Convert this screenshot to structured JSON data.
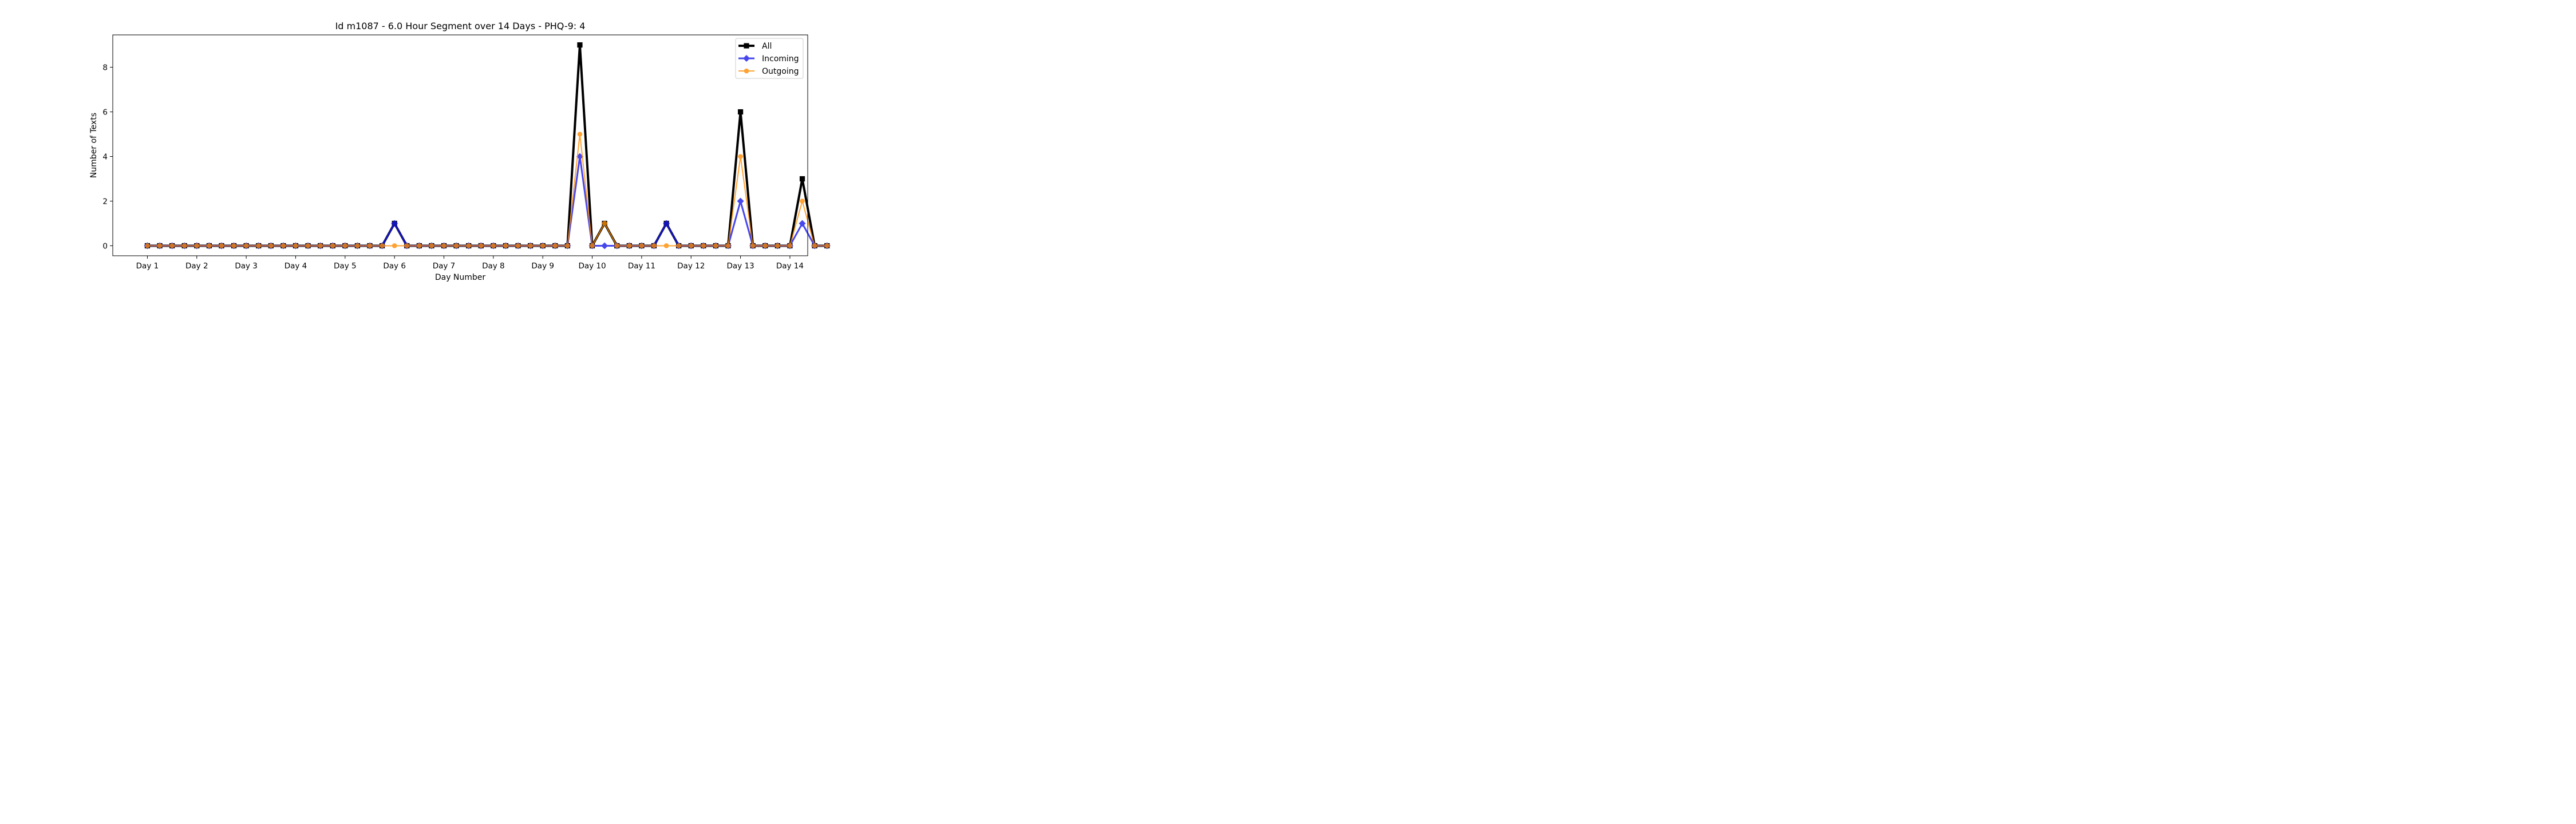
{
  "chart_data": {
    "type": "line",
    "title": "Id m1087 - 6.0 Hour Segment over 14 Days - PHQ-9: 4",
    "xlabel": "Day Number",
    "ylabel": "Number of Texts",
    "xtick_labels": [
      "Day 1",
      "Day 2",
      "Day 3",
      "Day 4",
      "Day 5",
      "Day 6",
      "Day 7",
      "Day 8",
      "Day 9",
      "Day 10",
      "Day 11",
      "Day 12",
      "Day 13",
      "Day 14"
    ],
    "ytick_values": [
      0,
      2,
      4,
      6,
      8
    ],
    "ylim": [
      -0.45,
      9.45
    ],
    "xlim": [
      -1.4,
      26.72
    ],
    "grid": false,
    "legend_position": "top-right",
    "series": [
      {
        "name": "All",
        "color": "#000000",
        "marker": "square",
        "values": [
          0,
          0,
          0,
          0,
          0,
          0,
          0,
          0,
          0,
          0,
          0,
          0,
          0,
          0,
          0,
          0,
          0,
          0,
          0,
          0,
          1,
          0,
          0,
          0,
          0,
          0,
          0,
          0,
          0,
          0,
          0,
          0,
          0,
          0,
          0,
          9,
          0,
          1,
          0,
          0,
          0,
          0,
          1,
          0,
          0,
          0,
          0,
          0,
          6,
          0,
          0,
          0,
          0,
          3,
          0,
          0
        ]
      },
      {
        "name": "Incoming",
        "color": "#1a1aeb",
        "marker": "diamond",
        "values": [
          0,
          0,
          0,
          0,
          0,
          0,
          0,
          0,
          0,
          0,
          0,
          0,
          0,
          0,
          0,
          0,
          0,
          0,
          0,
          0,
          1,
          0,
          0,
          0,
          0,
          0,
          0,
          0,
          0,
          0,
          0,
          0,
          0,
          0,
          0,
          4,
          0,
          0,
          0,
          0,
          0,
          0,
          1,
          0,
          0,
          0,
          0,
          0,
          2,
          0,
          0,
          0,
          0,
          1,
          0,
          0
        ]
      },
      {
        "name": "Outgoing",
        "color": "#ff8c00",
        "marker": "circle",
        "values": [
          0,
          0,
          0,
          0,
          0,
          0,
          0,
          0,
          0,
          0,
          0,
          0,
          0,
          0,
          0,
          0,
          0,
          0,
          0,
          0,
          0,
          0,
          0,
          0,
          0,
          0,
          0,
          0,
          0,
          0,
          0,
          0,
          0,
          0,
          0,
          5,
          0,
          1,
          0,
          0,
          0,
          0,
          0,
          0,
          0,
          0,
          0,
          0,
          4,
          0,
          0,
          0,
          0,
          2,
          0,
          0
        ]
      }
    ]
  }
}
